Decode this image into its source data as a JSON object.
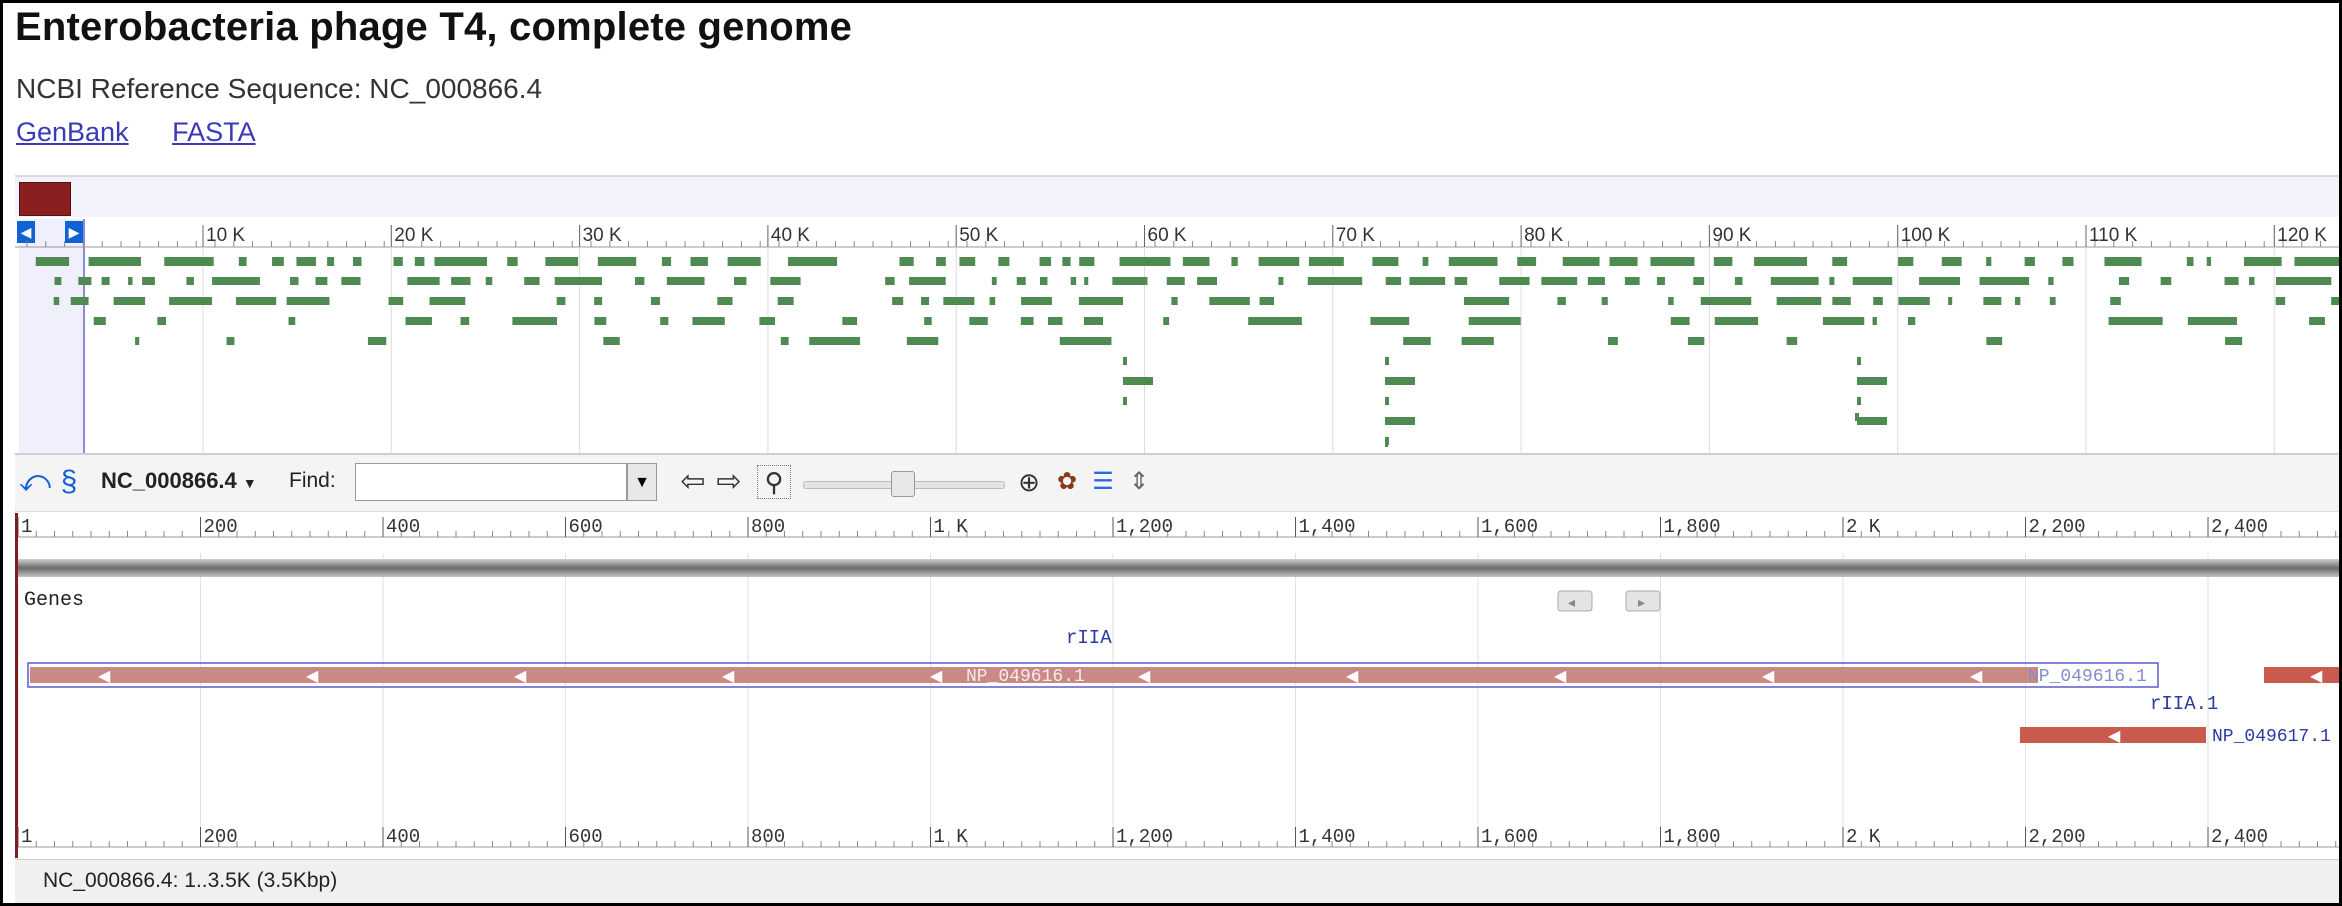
{
  "header": {
    "title": "Enterobacteria phage T4, complete genome",
    "subtitle": "NCBI Reference Sequence: NC_000866.4",
    "links": [
      "GenBank",
      "FASTA"
    ]
  },
  "overview": {
    "ticks": [
      "10 K",
      "20 K",
      "30 K",
      "40 K",
      "50 K",
      "60 K",
      "70 K",
      "80 K",
      "90 K",
      "100 K",
      "110 K",
      "120 K"
    ],
    "feature_color": "#4f8a52",
    "marker_color": "#8b1e1e"
  },
  "toolbar": {
    "sequence": "NC_000866.4",
    "find_label": "Find:",
    "find_value": "",
    "find_placeholder": ""
  },
  "ruler": {
    "ticks": [
      "1",
      "200",
      "400",
      "600",
      "800",
      "1 K",
      "1,200",
      "1,400",
      "1,600",
      "1,800",
      "2 K",
      "2,200",
      "2,400"
    ]
  },
  "track": {
    "name": "Genes",
    "genes": [
      {
        "name": "rIIA",
        "protein": "NP_049616.1",
        "selected": true
      },
      {
        "name": "rIIA.1",
        "protein": "NP_049617.1",
        "selected": false
      }
    ],
    "gene_color": "#c85a4e",
    "selected_color": "#c98a86"
  },
  "status": {
    "text": "NC_000866.4: 1..3.5K (3.5Kbp)"
  }
}
